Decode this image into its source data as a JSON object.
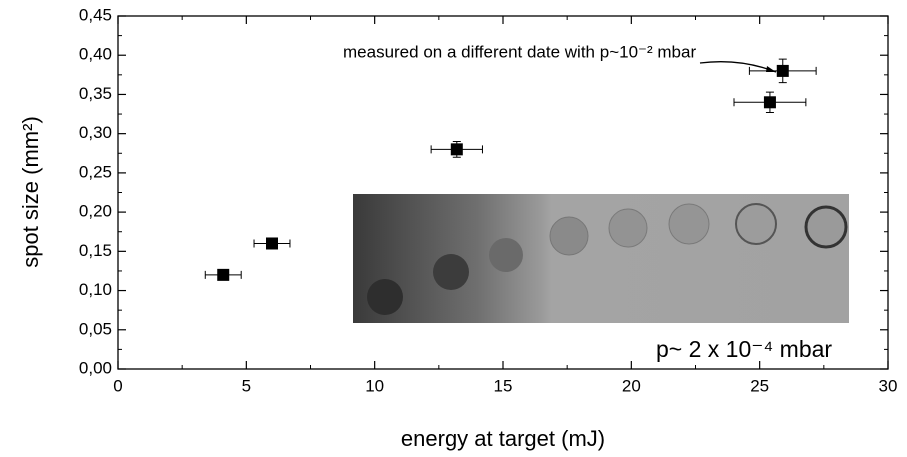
{
  "chart_data": {
    "type": "scatter",
    "xlabel": "energy at target (mJ)",
    "ylabel": "spot size (mm²)",
    "annotations": [
      "measured on a different date with p~10⁻² mbar",
      "p~ 2 x 10⁻⁴ mbar"
    ],
    "xlim": [
      0,
      30
    ],
    "xticks": [
      0,
      5,
      10,
      15,
      20,
      25,
      30
    ],
    "ylim": [
      0,
      0.45
    ],
    "yticks": [
      {
        "value": 0,
        "label": "0,00"
      },
      {
        "value": 0.05,
        "label": "0,05"
      },
      {
        "value": 0.1,
        "label": "0,10"
      },
      {
        "value": 0.15,
        "label": "0,15"
      },
      {
        "value": 0.2,
        "label": "0,20"
      },
      {
        "value": 0.25,
        "label": "0,25"
      },
      {
        "value": 0.3,
        "label": "0,30"
      },
      {
        "value": 0.35,
        "label": "0,35"
      },
      {
        "value": 0.4,
        "label": "0,40"
      },
      {
        "value": 0.45,
        "label": "0,45"
      }
    ],
    "series": [
      {
        "color": "#000000",
        "x": [
          4.1,
          6.0,
          13.2,
          25.4,
          25.9
        ],
        "y": [
          0.12,
          0.16,
          0.28,
          0.34,
          0.38
        ],
        "xerr": [
          0.7,
          0.7,
          1.0,
          1.4,
          1.3
        ],
        "yerr": [
          0.005,
          0.005,
          0.01,
          0.013,
          0.015
        ]
      }
    ]
  }
}
